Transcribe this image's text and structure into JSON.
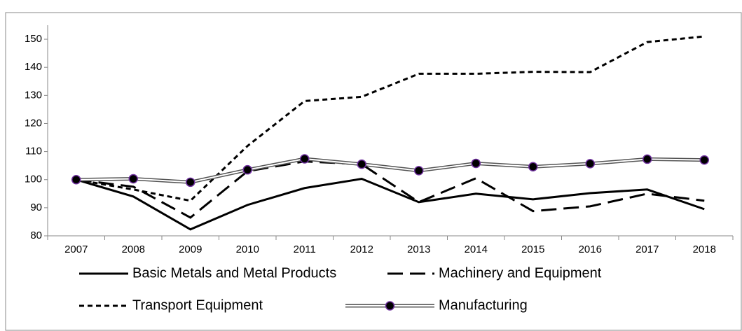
{
  "chart_data": {
    "type": "line",
    "categories": [
      "2007",
      "2008",
      "2009",
      "2010",
      "2011",
      "2012",
      "2013",
      "2014",
      "2015",
      "2016",
      "2017",
      "2018"
    ],
    "series": [
      {
        "name": "Basic Metals and Metal Products",
        "color": "#000000",
        "line_style": "solid",
        "values": [
          100,
          94,
          82.3,
          91,
          97,
          100.3,
          92,
          95,
          93,
          95.2,
          96.5,
          89.5
        ]
      },
      {
        "name": "Machinery and Equipment",
        "color": "#000000",
        "line_style": "long-dash",
        "values": [
          100,
          97.5,
          86.5,
          103,
          106.5,
          105.5,
          92,
          100.5,
          88.8,
          90.5,
          95,
          92.5
        ]
      },
      {
        "name": "Transport Equipment",
        "color": "#000000",
        "line_style": "dash",
        "values": [
          100,
          96.5,
          92.5,
          112,
          128,
          129.5,
          137.7,
          137.7,
          138.4,
          138.3,
          149,
          151
        ]
      },
      {
        "name": "Manufacturing",
        "color": "#555555",
        "line_style": "double-marker",
        "values": [
          100,
          100.3,
          99.1,
          103.5,
          107.4,
          105.5,
          103.2,
          105.8,
          104.6,
          105.7,
          107.3,
          107
        ]
      }
    ],
    "ylim": [
      80,
      155
    ],
    "yticks": [
      80,
      90,
      100,
      110,
      120,
      130,
      140,
      150
    ],
    "grid": false
  }
}
